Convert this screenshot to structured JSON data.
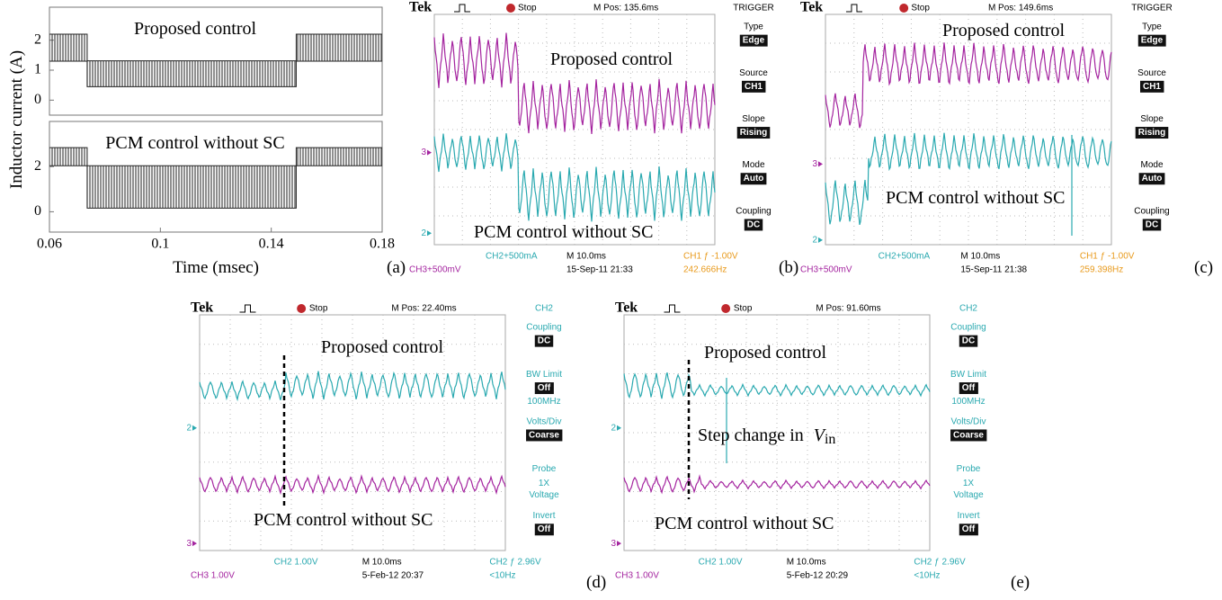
{
  "chart_data": [
    {
      "type": "line",
      "ylabel": "Inductor current (A)",
      "annotation": "Proposed control",
      "x": [
        0.06,
        0.0736,
        0.0736,
        0.149,
        0.149,
        0.18
      ],
      "series": [
        {
          "color": "#222222",
          "values": [
            2.2,
            2.2,
            1.31,
            1.31,
            2.2,
            2.2
          ]
        },
        {
          "color": "#222222",
          "values": [
            1.3,
            1.3,
            0.45,
            0.45,
            1.3,
            1.3
          ]
        }
      ],
      "xlim": [
        0.06,
        0.18
      ],
      "ylim": [
        -0.5,
        3.1
      ],
      "yticks": [
        0,
        1,
        2
      ]
    },
    {
      "type": "line",
      "xlabel": "Time (msec)",
      "annotation": "PCM control without SC",
      "panel_label": "(a)",
      "x": [
        0.06,
        0.0736,
        0.0736,
        0.149,
        0.149,
        0.18
      ],
      "series": [
        {
          "color": "#222222",
          "values": [
            2.84,
            2.84,
            2.04,
            2.04,
            2.84,
            2.84
          ]
        },
        {
          "color": "#222222",
          "values": [
            2.04,
            2.04,
            0.16,
            0.16,
            2.04,
            2.04
          ]
        }
      ],
      "xlim": [
        0.06,
        0.18
      ],
      "xticks": [
        0.06,
        0.1,
        0.14,
        0.18
      ],
      "ylim": [
        -0.9,
        4
      ],
      "yticks": [
        0,
        2
      ]
    }
  ],
  "scopes": [
    {
      "label": "(b)",
      "header": {
        "brand": "Tek",
        "status": "Stop",
        "position": "M Pos: 135.6ms",
        "menu_title": "TRIGGER"
      },
      "accent": "#000000",
      "menu": [
        {
          "title": "Type",
          "value": "Edge"
        },
        {
          "title": "Source",
          "value": "CH1"
        },
        {
          "title": "Slope",
          "value": "Rising"
        },
        {
          "title": "Mode",
          "value": "Auto"
        },
        {
          "title": "Coupling",
          "value": "DC"
        }
      ],
      "markers": [
        "3",
        "2"
      ],
      "footer": [
        [
          {
            "text": "CH2+500mA",
            "color": "#2aa9b0"
          },
          {
            "text": "M 10.0ms",
            "color": "#000000"
          },
          {
            "text": "CH1 ƒ -1.00V",
            "color": "#e89a1c"
          }
        ],
        [
          {
            "text": "CH3+500mV",
            "color": "#a4249f"
          },
          {
            "text": "15-Sep-11 21:33",
            "color": "#000000"
          },
          {
            "text": "242.666Hz",
            "color": "#e89a1c"
          }
        ]
      ],
      "annotations": [
        "Proposed control",
        "PCM control without SC"
      ]
    },
    {
      "label": "(c)",
      "header": {
        "brand": "Tek",
        "status": "Stop",
        "position": "M Pos: 149.6ms",
        "menu_title": "TRIGGER"
      },
      "accent": "#000000",
      "menu": [
        {
          "title": "Type",
          "value": "Edge"
        },
        {
          "title": "Source",
          "value": "CH1"
        },
        {
          "title": "Slope",
          "value": "Rising"
        },
        {
          "title": "Mode",
          "value": "Auto"
        },
        {
          "title": "Coupling",
          "value": "DC"
        }
      ],
      "markers": [
        "3",
        "2"
      ],
      "footer": [
        [
          {
            "text": "CH2+500mA",
            "color": "#2aa9b0"
          },
          {
            "text": "M 10.0ms",
            "color": "#000000"
          },
          {
            "text": "CH1 ƒ -1.00V",
            "color": "#e89a1c"
          }
        ],
        [
          {
            "text": "CH3+500mV",
            "color": "#a4249f"
          },
          {
            "text": "15-Sep-11 21:38",
            "color": "#000000"
          },
          {
            "text": "259.398Hz",
            "color": "#e89a1c"
          }
        ]
      ],
      "annotations": [
        "Proposed control",
        "PCM control without SC"
      ]
    },
    {
      "label": "(d)",
      "header": {
        "brand": "Tek",
        "status": "Stop",
        "position": "M Pos: 22.40ms",
        "menu_title": "CH2"
      },
      "accent": "#2aa9b0",
      "menu": [
        {
          "title": "Coupling",
          "value": "DC"
        },
        {
          "title": "BW Limit",
          "value": "Off",
          "notes": [
            "100MHz"
          ]
        },
        {
          "title": "Volts/Div",
          "value": "Coarse"
        },
        {
          "title": "Probe",
          "notes": [
            "1X",
            "Voltage"
          ]
        },
        {
          "title": "Invert",
          "value": "Off"
        }
      ],
      "markers": [
        "2",
        "3"
      ],
      "footer": [
        [
          {
            "text": "CH2  1.00V",
            "color": "#2aa9b0"
          },
          {
            "text": "M 10.0ms",
            "color": "#000000"
          },
          {
            "text": "CH2 ƒ 2.96V",
            "color": "#2aa9b0"
          }
        ],
        [
          {
            "text": "CH3  1.00V",
            "color": "#a4249f"
          },
          {
            "text": "5-Feb-12 20:37",
            "color": "#000000"
          },
          {
            "text": "<10Hz",
            "color": "#2aa9b0"
          }
        ]
      ],
      "annotations": [
        "Proposed control",
        "PCM control without SC"
      ]
    },
    {
      "label": "(e)",
      "header": {
        "brand": "Tek",
        "status": "Stop",
        "position": "M Pos: 91.60ms",
        "menu_title": "CH2"
      },
      "accent": "#2aa9b0",
      "menu": [
        {
          "title": "Coupling",
          "value": "DC"
        },
        {
          "title": "BW Limit",
          "value": "Off",
          "notes": [
            "100MHz"
          ]
        },
        {
          "title": "Volts/Div",
          "value": "Coarse"
        },
        {
          "title": "Probe",
          "notes": [
            "1X",
            "Voltage"
          ]
        },
        {
          "title": "Invert",
          "value": "Off"
        }
      ],
      "markers": [
        "2",
        "3"
      ],
      "footer": [
        [
          {
            "text": "CH2  1.00V",
            "color": "#2aa9b0"
          },
          {
            "text": "M 10.0ms",
            "color": "#000000"
          },
          {
            "text": "CH2 ƒ 2.96V",
            "color": "#2aa9b0"
          }
        ],
        [
          {
            "text": "CH3  1.00V",
            "color": "#a4249f"
          },
          {
            "text": "5-Feb-12 20:29",
            "color": "#000000"
          },
          {
            "text": "<10Hz",
            "color": "#2aa9b0"
          }
        ]
      ],
      "annotations": [
        "Proposed control",
        {
          "text": "Step change in ",
          "symbol": "V",
          "subscript": "in"
        },
        "PCM control without SC"
      ]
    }
  ]
}
